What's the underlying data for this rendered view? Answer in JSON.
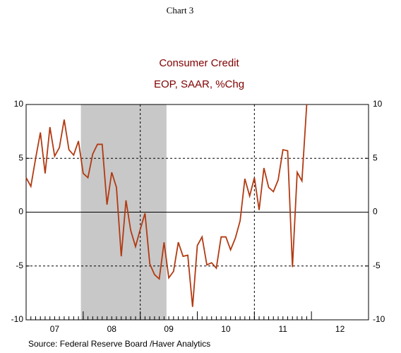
{
  "chart_data": {
    "type": "line",
    "header": "Chart 3",
    "title": "Consumer Credit",
    "subtitle": "EOP, SAAR, %Chg",
    "source": "Source:  Federal Reserve Board /Haver Analytics",
    "x": [
      2007,
      2007.083,
      2007.167,
      2007.25,
      2007.333,
      2007.417,
      2007.5,
      2007.583,
      2007.667,
      2007.75,
      2007.833,
      2007.917,
      2008,
      2008.083,
      2008.167,
      2008.25,
      2008.333,
      2008.417,
      2008.5,
      2008.583,
      2008.667,
      2008.75,
      2008.833,
      2008.917,
      2009,
      2009.083,
      2009.167,
      2009.25,
      2009.333,
      2009.417,
      2009.5,
      2009.583,
      2009.667,
      2009.75,
      2009.833,
      2009.917,
      2010,
      2010.083,
      2010.167,
      2010.25,
      2010.333,
      2010.417,
      2010.5,
      2010.583,
      2010.667,
      2010.75,
      2010.833,
      2010.917,
      2011,
      2011.083,
      2011.167,
      2011.25,
      2011.333,
      2011.417,
      2011.5,
      2011.583,
      2011.667,
      2011.75,
      2011.833,
      2011.917
    ],
    "series": [
      {
        "color": "#b23a12",
        "values": [
          3.2,
          2.4,
          5.0,
          7.4,
          3.6,
          7.9,
          5.2,
          6.0,
          8.6,
          5.8,
          5.3,
          6.6,
          3.6,
          3.2,
          5.4,
          6.3,
          6.3,
          0.7,
          3.7,
          2.3,
          -4.1,
          1.1,
          -1.7,
          -3.2,
          -1.6,
          -0.1,
          -4.8,
          -5.8,
          -6.2,
          -2.8,
          -6.1,
          -5.5,
          -2.8,
          -4.1,
          -4.0,
          -8.8,
          -3.1,
          -2.3,
          -4.9,
          -4.7,
          -5.2,
          -2.3,
          -2.3,
          -3.5,
          -2.4,
          -0.8,
          3.1,
          1.5,
          3.2,
          0.2,
          4.1,
          2.3,
          1.9,
          3.0,
          5.8,
          5.7,
          -5.1,
          3.7,
          2.9,
          10.0
        ]
      }
    ],
    "xlim": [
      2007,
      2013
    ],
    "xticks": [
      2007,
      2008,
      2009,
      2010,
      2011,
      2012,
      2013
    ],
    "xtick_labels": [
      {
        "value": 2007.5,
        "label": "07"
      },
      {
        "value": 2008.5,
        "label": "08"
      },
      {
        "value": 2009.5,
        "label": "09"
      },
      {
        "value": 2010.5,
        "label": "10"
      },
      {
        "value": 2011.5,
        "label": "11"
      },
      {
        "value": 2012.5,
        "label": "12"
      }
    ],
    "xgrid": [
      2009,
      2011
    ],
    "shade": [
      2007.96,
      2009.46
    ],
    "shade_color": "#c8c8c8",
    "ylim": [
      -10,
      10
    ],
    "yticks": [
      -10,
      -5,
      0,
      5,
      10
    ],
    "grid": true
  }
}
